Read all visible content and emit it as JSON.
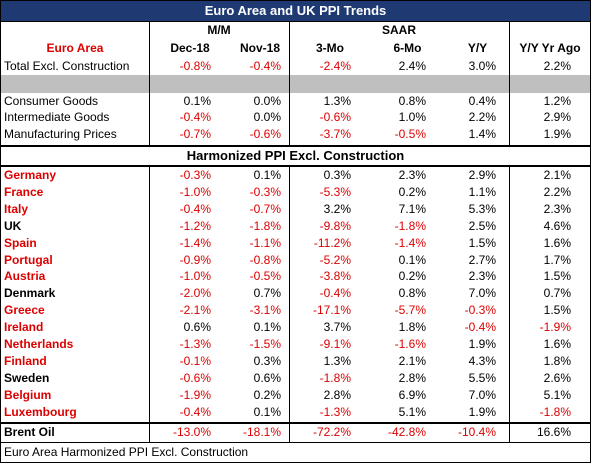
{
  "title": "Euro Area and UK PPI Trends",
  "groups": [
    "M/M",
    "SAAR"
  ],
  "header": [
    "Euro Area",
    "Dec-18",
    "Nov-18",
    "3-Mo",
    "6-Mo",
    "Y/Y",
    "Y/Y Yr Ago"
  ],
  "rows": [
    {
      "label": "Total Excl. Construction",
      "values": [
        "-0.8%",
        "-0.4%",
        "-2.4%",
        "2.4%",
        "3.0%",
        "2.2%"
      ]
    },
    {
      "label": "Consumer Goods",
      "values": [
        "0.1%",
        "0.0%",
        "1.3%",
        "0.8%",
        "0.4%",
        "1.2%"
      ]
    },
    {
      "label": "Intermediate Goods",
      "values": [
        "-0.4%",
        "0.0%",
        "-0.6%",
        "1.0%",
        "2.2%",
        "2.9%"
      ]
    },
    {
      "label": "Manufacturing Prices",
      "values": [
        "-0.7%",
        "-0.6%",
        "-3.7%",
        "-0.5%",
        "1.4%",
        "1.9%"
      ]
    }
  ],
  "section_title": "Harmonized PPI Excl. Construction",
  "countries": [
    {
      "label": "Germany",
      "color": "red",
      "values": [
        "-0.3%",
        "0.1%",
        "0.3%",
        "2.3%",
        "2.9%",
        "2.1%"
      ]
    },
    {
      "label": "France",
      "color": "red",
      "values": [
        "-1.0%",
        "-0.3%",
        "-5.3%",
        "0.2%",
        "1.1%",
        "2.2%"
      ]
    },
    {
      "label": "Italy",
      "color": "red",
      "values": [
        "-0.4%",
        "-0.7%",
        "3.2%",
        "7.1%",
        "5.3%",
        "2.3%"
      ]
    },
    {
      "label": "UK",
      "color": "black",
      "values": [
        "-1.2%",
        "-1.8%",
        "-9.8%",
        "-1.8%",
        "2.5%",
        "4.6%"
      ]
    },
    {
      "label": "Spain",
      "color": "red",
      "values": [
        "-1.4%",
        "-1.1%",
        "-11.2%",
        "-1.4%",
        "1.5%",
        "1.6%"
      ]
    },
    {
      "label": "Portugal",
      "color": "red",
      "values": [
        "-0.9%",
        "-0.8%",
        "-5.2%",
        "0.1%",
        "2.7%",
        "1.7%"
      ]
    },
    {
      "label": "Austria",
      "color": "red",
      "values": [
        "-1.0%",
        "-0.5%",
        "-3.8%",
        "0.2%",
        "2.3%",
        "1.5%"
      ]
    },
    {
      "label": "Denmark",
      "color": "black",
      "values": [
        "-2.0%",
        "0.7%",
        "-0.4%",
        "0.8%",
        "7.0%",
        "0.7%"
      ]
    },
    {
      "label": "Greece",
      "color": "red",
      "values": [
        "-2.1%",
        "-3.1%",
        "-17.1%",
        "-5.7%",
        "-0.3%",
        "1.5%"
      ]
    },
    {
      "label": "Ireland",
      "color": "red",
      "values": [
        "0.6%",
        "0.1%",
        "3.7%",
        "1.8%",
        "-0.4%",
        "-1.9%"
      ]
    },
    {
      "label": "Netherlands",
      "color": "red",
      "values": [
        "-1.3%",
        "-1.5%",
        "-9.1%",
        "-1.6%",
        "1.9%",
        "1.6%"
      ]
    },
    {
      "label": "Finland",
      "color": "red",
      "values": [
        "-0.1%",
        "0.3%",
        "1.3%",
        "2.1%",
        "4.3%",
        "1.8%"
      ]
    },
    {
      "label": "Sweden",
      "color": "black",
      "values": [
        "-0.6%",
        "0.6%",
        "-1.8%",
        "2.8%",
        "5.5%",
        "2.6%"
      ]
    },
    {
      "label": "Belgium",
      "color": "red",
      "values": [
        "-1.9%",
        "0.2%",
        "2.8%",
        "6.9%",
        "7.0%",
        "5.1%"
      ]
    },
    {
      "label": "Luxembourg",
      "color": "red",
      "values": [
        "-0.4%",
        "0.1%",
        "-1.3%",
        "5.1%",
        "1.9%",
        "-1.8%"
      ]
    }
  ],
  "brent": {
    "label": "Brent Oil",
    "values": [
      "-13.0%",
      "-18.1%",
      "-72.2%",
      "-42.8%",
      "-10.4%",
      "16.6%"
    ]
  },
  "footer": "Euro Area Harmonized PPI Excl. Construction"
}
